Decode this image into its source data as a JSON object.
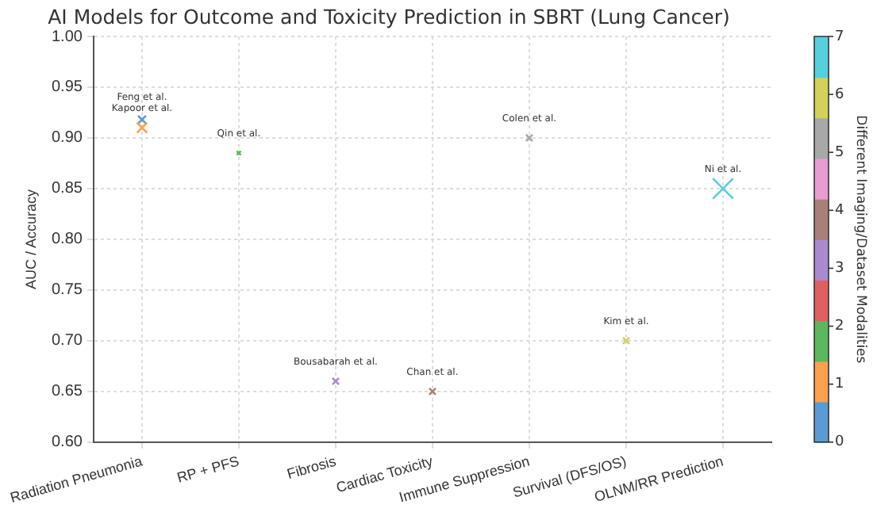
{
  "chart_data": {
    "type": "bubble",
    "title": "AI Models for Outcome and Toxicity Prediction in SBRT (Lung Cancer)",
    "ylabel": "AUC / Accuracy",
    "clabel": "Different Imaging/Dataset Modalities",
    "categories": [
      "Radiation Pneumonia",
      "RP + PFS",
      "Fibrosis",
      "Cardiac Toxicity",
      "Immune Suppression",
      "Survival (DFS/OS)",
      "OLNM/RR Prediction"
    ],
    "series": [
      {
        "x": [
          "Radiation Pneumonia",
          "Radiation Pneumonia",
          "RP + PFS",
          "Fibrosis",
          "Cardiac Toxicity",
          "Immune Suppression",
          "Survival (DFS/OS)",
          "OLNM/RR Prediction"
        ],
        "values": [
          0.918,
          0.91,
          0.885,
          0.66,
          0.65,
          0.9,
          0.7,
          0.85
        ],
        "cvalues": [
          0,
          1,
          2,
          3,
          4,
          5,
          6,
          7
        ],
        "sizes": [
          0.15,
          0.25,
          0.04,
          0.1,
          0.1,
          0.1,
          0.1,
          1
        ]
      }
    ],
    "annotations": [
      {
        "text": "Feng et al.",
        "x": "Radiation Pneumonia",
        "y": 0.918
      },
      {
        "text": "Kapoor et al.",
        "x": "Radiation Pneumonia",
        "y": 0.91
      },
      {
        "text": "Qin et al.",
        "x": "RP + PFS",
        "y": 0.885
      },
      {
        "text": "Bousabarah et al.",
        "x": "Fibrosis",
        "y": 0.66
      },
      {
        "text": "Chan et al.",
        "x": "Cardiac Toxicity",
        "y": 0.65
      },
      {
        "text": "Colen et al.",
        "x": "Immune Suppression",
        "y": 0.9
      },
      {
        "text": "Kim et al.",
        "x": "Survival (DFS/OS)",
        "y": 0.7
      },
      {
        "text": "Ni et al.",
        "x": "OLNM/RR Prediction",
        "y": 0.85
      }
    ],
    "ylim": [
      0.6,
      1.0
    ],
    "yticks": [
      {
        "value": 0.6,
        "label": "0.60"
      },
      0.65,
      {
        "value": 0.7,
        "label": "0.70"
      },
      0.75,
      {
        "value": 0.8,
        "label": "0.80"
      },
      0.85,
      {
        "value": 0.9,
        "label": "0.90"
      },
      0.95,
      {
        "value": 1.0,
        "label": "1.00"
      }
    ],
    "clim": [
      0,
      7
    ],
    "cticks": [
      0,
      1,
      2,
      3,
      4,
      5,
      6,
      7
    ],
    "grid": true,
    "marker": "cross",
    "legend": false
  }
}
